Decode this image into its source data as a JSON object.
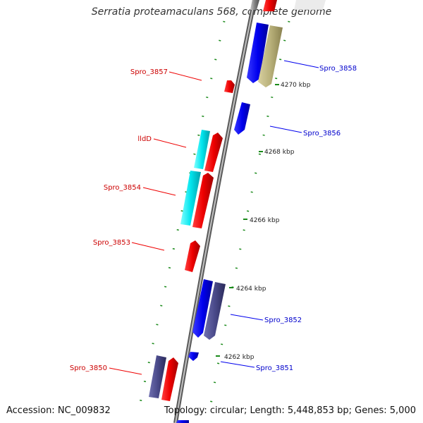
{
  "title": "Serratia proteamaculans 568, complete genome",
  "accession": "Accession: NC_009832",
  "topology": "Topology: circular; Length: 5,448,853 bp; Genes: 5,000",
  "colors": {
    "forward_cds": "#0000ee",
    "reverse_cds": "#ee0000",
    "rna": "#00e5ee",
    "other": "#b8b07a",
    "pseudo": "#4a4a8a",
    "tick": "#1a8a1a",
    "backbone": "#888888",
    "label_red": "#cc0000",
    "label_blue": "#0000cc"
  },
  "kbp_ticks": [
    {
      "label": "4270 kbp"
    },
    {
      "label": "4268 kbp"
    },
    {
      "label": "4266 kbp"
    },
    {
      "label": "4264 kbp"
    },
    {
      "label": "4262 kbp"
    }
  ],
  "gene_labels": [
    {
      "name": "Spro_3858",
      "strand": "forward"
    },
    {
      "name": "Spro_3857",
      "strand": "reverse"
    },
    {
      "name": "Spro_3856",
      "strand": "forward"
    },
    {
      "name": "lldD",
      "strand": "reverse"
    },
    {
      "name": "Spro_3854",
      "strand": "reverse"
    },
    {
      "name": "Spro_3853",
      "strand": "reverse"
    },
    {
      "name": "Spro_3852",
      "strand": "forward"
    },
    {
      "name": "Spro_3851",
      "strand": "forward"
    },
    {
      "name": "Spro_3850",
      "strand": "reverse"
    }
  ]
}
